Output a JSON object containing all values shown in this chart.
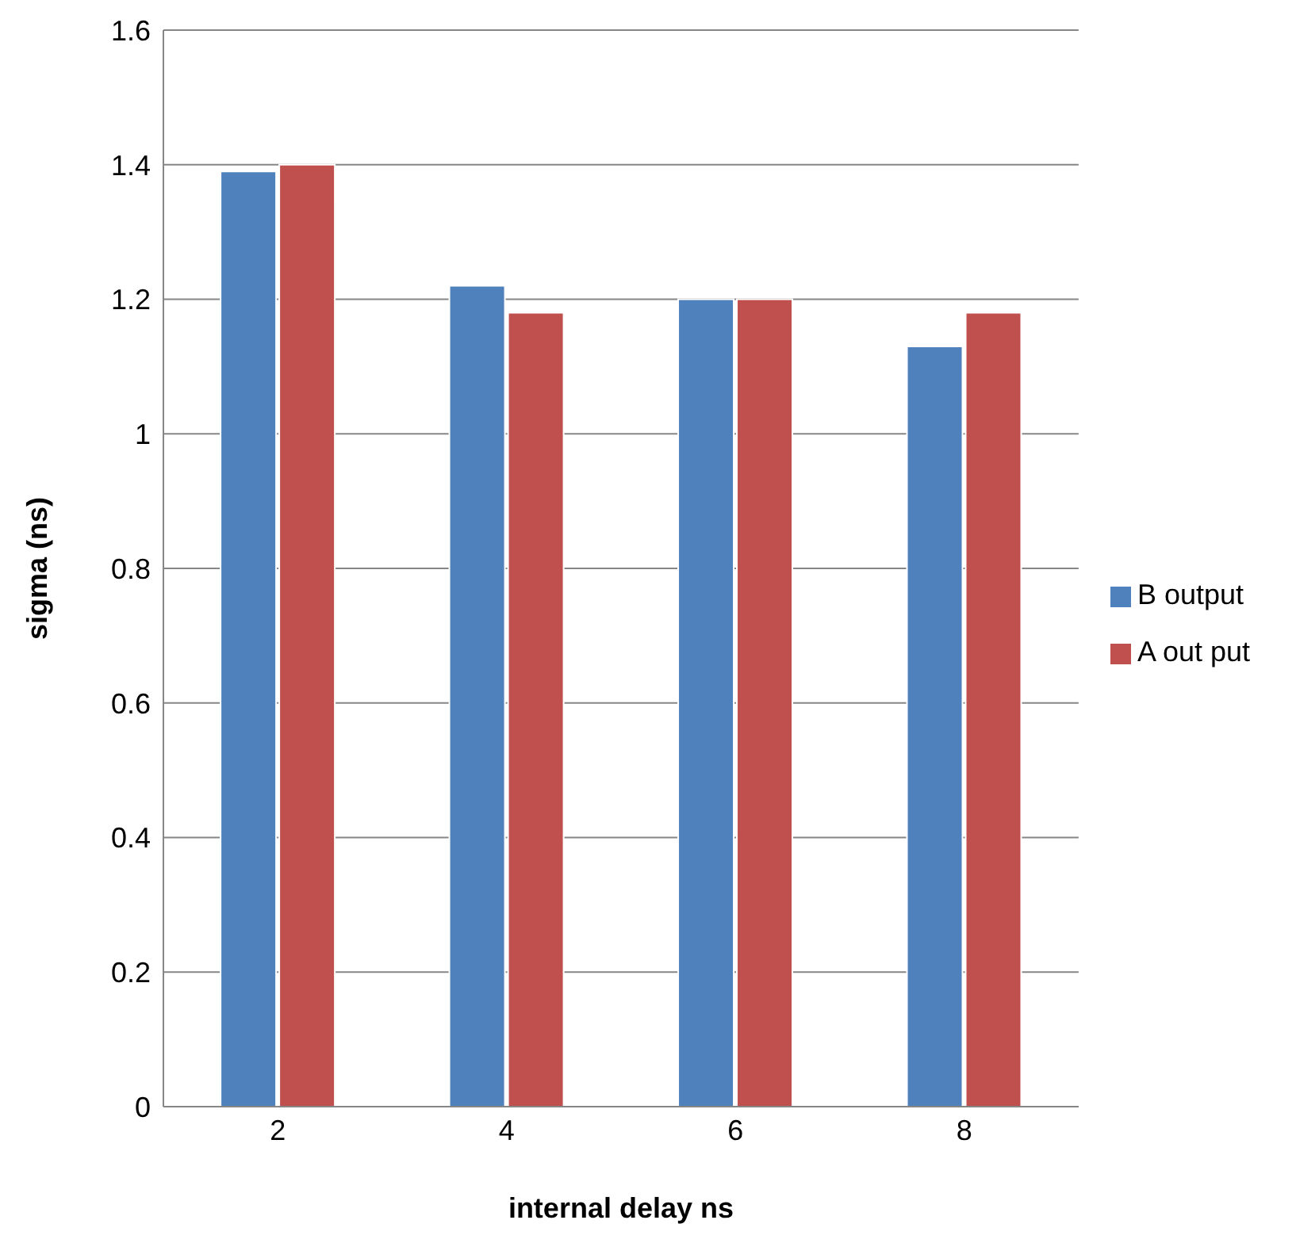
{
  "chart_data": {
    "type": "bar",
    "xlabel": "internal delay ns",
    "ylabel": "sigma (ns)",
    "categories": [
      "2",
      "4",
      "6",
      "8"
    ],
    "series": [
      {
        "name": "B output",
        "color": "#4f81bd",
        "values": [
          1.39,
          1.22,
          1.2,
          1.13
        ]
      },
      {
        "name": "A out put",
        "color": "#c0504d",
        "values": [
          1.4,
          1.18,
          1.2,
          1.18
        ]
      }
    ],
    "ylim": [
      0,
      1.6
    ],
    "yticks": [
      0,
      0.2,
      0.4,
      0.6,
      0.8,
      1,
      1.2,
      1.4,
      1.6
    ],
    "grid": "y",
    "legend": "right"
  }
}
